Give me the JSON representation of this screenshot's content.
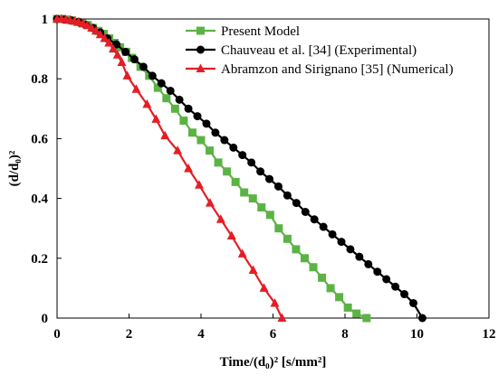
{
  "chart_data": {
    "type": "line",
    "xlabel": "Time/(d₀)² [s/mm²]",
    "ylabel": "(d/d₀)²",
    "xlim": [
      0,
      12
    ],
    "ylim": [
      0,
      1
    ],
    "x_ticks": [
      0,
      2,
      4,
      6,
      8,
      10,
      12
    ],
    "y_ticks": [
      0,
      0.2,
      0.4,
      0.6,
      0.8,
      1
    ],
    "x_tick_labels": [
      "0",
      "2",
      "4",
      "6",
      "8",
      "10",
      "12"
    ],
    "y_tick_labels": [
      "0",
      "0.2",
      "0.4",
      "0.6",
      "0.8",
      "1"
    ],
    "grid": false,
    "legend_position": "top-right",
    "series": [
      {
        "name": "Present Model",
        "color": "#5cb345",
        "marker": "square",
        "x": [
          0,
          0.14,
          0.28,
          0.42,
          0.56,
          0.7,
          0.85,
          1.0,
          1.15,
          1.3,
          1.45,
          1.6,
          1.75,
          1.92,
          2.08,
          2.32,
          2.56,
          2.8,
          3.04,
          3.28,
          3.52,
          3.76,
          4.0,
          4.24,
          4.48,
          4.72,
          4.96,
          5.2,
          5.44,
          5.68,
          5.92,
          6.16,
          6.4,
          6.64,
          6.88,
          7.12,
          7.36,
          7.6,
          7.84,
          8.08,
          8.32,
          8.6
        ],
        "y": [
          1.0,
          1.0,
          0.998,
          0.995,
          0.99,
          0.985,
          0.98,
          0.97,
          0.96,
          0.95,
          0.935,
          0.92,
          0.905,
          0.89,
          0.87,
          0.84,
          0.81,
          0.77,
          0.735,
          0.7,
          0.66,
          0.62,
          0.595,
          0.56,
          0.52,
          0.49,
          0.455,
          0.42,
          0.4,
          0.37,
          0.345,
          0.3,
          0.265,
          0.23,
          0.2,
          0.17,
          0.135,
          0.1,
          0.07,
          0.035,
          0.015,
          0.0
        ]
      },
      {
        "name": "Chauveau et al. [34] (Experimental)",
        "color": "#000000",
        "marker": "circle",
        "x": [
          0,
          0.2,
          0.4,
          0.6,
          0.8,
          1.0,
          1.2,
          1.4,
          1.65,
          1.9,
          2.15,
          2.4,
          2.65,
          2.9,
          3.15,
          3.4,
          3.65,
          3.9,
          4.15,
          4.4,
          4.65,
          4.9,
          5.15,
          5.4,
          5.65,
          5.9,
          6.15,
          6.4,
          6.65,
          6.9,
          7.15,
          7.4,
          7.65,
          7.9,
          8.15,
          8.4,
          8.65,
          8.9,
          9.15,
          9.4,
          9.65,
          9.9,
          10.15
        ],
        "y": [
          1.0,
          0.998,
          0.995,
          0.99,
          0.98,
          0.97,
          0.955,
          0.935,
          0.915,
          0.89,
          0.865,
          0.84,
          0.81,
          0.785,
          0.76,
          0.73,
          0.7,
          0.675,
          0.65,
          0.62,
          0.595,
          0.57,
          0.545,
          0.52,
          0.49,
          0.465,
          0.44,
          0.41,
          0.385,
          0.355,
          0.33,
          0.305,
          0.28,
          0.255,
          0.23,
          0.205,
          0.18,
          0.155,
          0.13,
          0.105,
          0.08,
          0.05,
          0.0
        ]
      },
      {
        "name": "Abramzon and Sirignano [35] (Numerical)",
        "color": "#e41e25",
        "marker": "triangle",
        "x": [
          0,
          0.12,
          0.24,
          0.36,
          0.48,
          0.6,
          0.72,
          0.84,
          0.96,
          1.08,
          1.2,
          1.32,
          1.44,
          1.56,
          1.68,
          1.8,
          1.95,
          2.2,
          2.5,
          2.75,
          3.0,
          3.35,
          3.65,
          3.95,
          4.25,
          4.55,
          4.85,
          5.15,
          5.45,
          5.75,
          6.05,
          6.25
        ],
        "y": [
          1.0,
          1.0,
          0.998,
          0.996,
          0.993,
          0.99,
          0.985,
          0.978,
          0.97,
          0.96,
          0.948,
          0.935,
          0.92,
          0.9,
          0.88,
          0.855,
          0.81,
          0.765,
          0.715,
          0.665,
          0.61,
          0.56,
          0.5,
          0.445,
          0.385,
          0.33,
          0.275,
          0.215,
          0.16,
          0.1,
          0.05,
          0.0
        ]
      }
    ]
  }
}
